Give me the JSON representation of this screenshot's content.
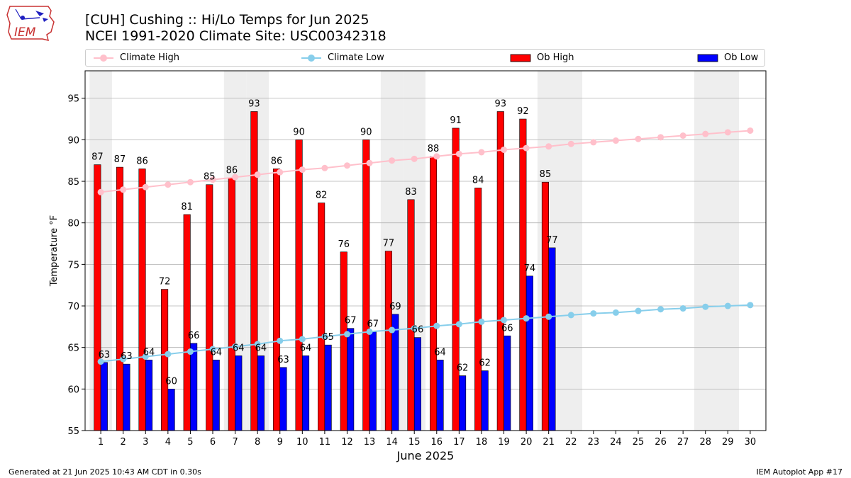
{
  "title_line1": "[CUH] Cushing :: Hi/Lo Temps for Jun 2025",
  "title_line2": "NCEI 1991-2020 Climate Site: USC00342318",
  "logo_text": "IEM",
  "footer_left": "Generated at 21 Jun 2025 10:43 AM CDT in 0.30s",
  "footer_right": "IEM Autoplot App #17",
  "legend": {
    "climate_high": "Climate High",
    "climate_low": "Climate Low",
    "ob_high": "Ob High",
    "ob_low": "Ob Low"
  },
  "colors": {
    "ob_high": "#ff0000",
    "ob_low": "#0000ff",
    "climate_high": "#ffc0cb",
    "climate_low": "#87ceeb",
    "weekend_band": "#eeeeee",
    "grid": "#b0b0b0"
  },
  "chart_data": {
    "type": "bar",
    "xlabel": "June 2025",
    "ylabel": "Temperature °F",
    "ylim": [
      55,
      98.3
    ],
    "yticks": [
      55,
      60,
      65,
      70,
      75,
      80,
      85,
      90,
      95
    ],
    "grid": "horizontal",
    "days": [
      1,
      2,
      3,
      4,
      5,
      6,
      7,
      8,
      9,
      10,
      11,
      12,
      13,
      14,
      15,
      16,
      17,
      18,
      19,
      20,
      21,
      22,
      23,
      24,
      25,
      26,
      27,
      28,
      29,
      30
    ],
    "weekend_days": [
      1,
      7,
      8,
      14,
      15,
      21,
      22,
      28,
      29
    ],
    "ob_high": [
      87,
      87,
      86,
      72,
      81,
      85,
      86,
      93,
      86,
      90,
      82,
      76,
      90,
      77,
      83,
      88,
      91,
      84,
      93,
      92,
      85
    ],
    "ob_high_plot": [
      87.0,
      86.7,
      86.5,
      72.0,
      81.0,
      84.6,
      85.4,
      93.4,
      86.5,
      90.0,
      82.4,
      76.5,
      90.0,
      76.6,
      82.8,
      88.0,
      91.4,
      84.2,
      93.4,
      92.5,
      84.9
    ],
    "ob_low": [
      63,
      63,
      64,
      60,
      66,
      64,
      64,
      64,
      63,
      64,
      65,
      67,
      67,
      69,
      66,
      64,
      62,
      62,
      66,
      74,
      77
    ],
    "ob_low_plot": [
      63.2,
      63.0,
      63.5,
      60.0,
      65.5,
      63.5,
      64.0,
      64.0,
      62.6,
      64.0,
      65.3,
      67.3,
      66.9,
      69.0,
      66.2,
      63.5,
      61.6,
      62.2,
      66.4,
      73.6,
      77.0
    ],
    "climate_high": [
      83.7,
      84.0,
      84.3,
      84.6,
      84.9,
      85.2,
      85.5,
      85.8,
      86.1,
      86.4,
      86.6,
      86.9,
      87.2,
      87.5,
      87.7,
      88.0,
      88.3,
      88.5,
      88.8,
      89.0,
      89.2,
      89.5,
      89.7,
      89.9,
      90.1,
      90.3,
      90.5,
      90.7,
      90.9,
      91.1
    ],
    "climate_low": [
      63.3,
      63.6,
      63.9,
      64.2,
      64.5,
      64.8,
      65.1,
      65.4,
      65.8,
      66.0,
      66.3,
      66.6,
      66.9,
      67.1,
      67.3,
      67.6,
      67.8,
      68.1,
      68.3,
      68.5,
      68.7,
      68.9,
      69.1,
      69.2,
      69.4,
      69.6,
      69.7,
      69.9,
      70.0,
      70.1
    ]
  }
}
